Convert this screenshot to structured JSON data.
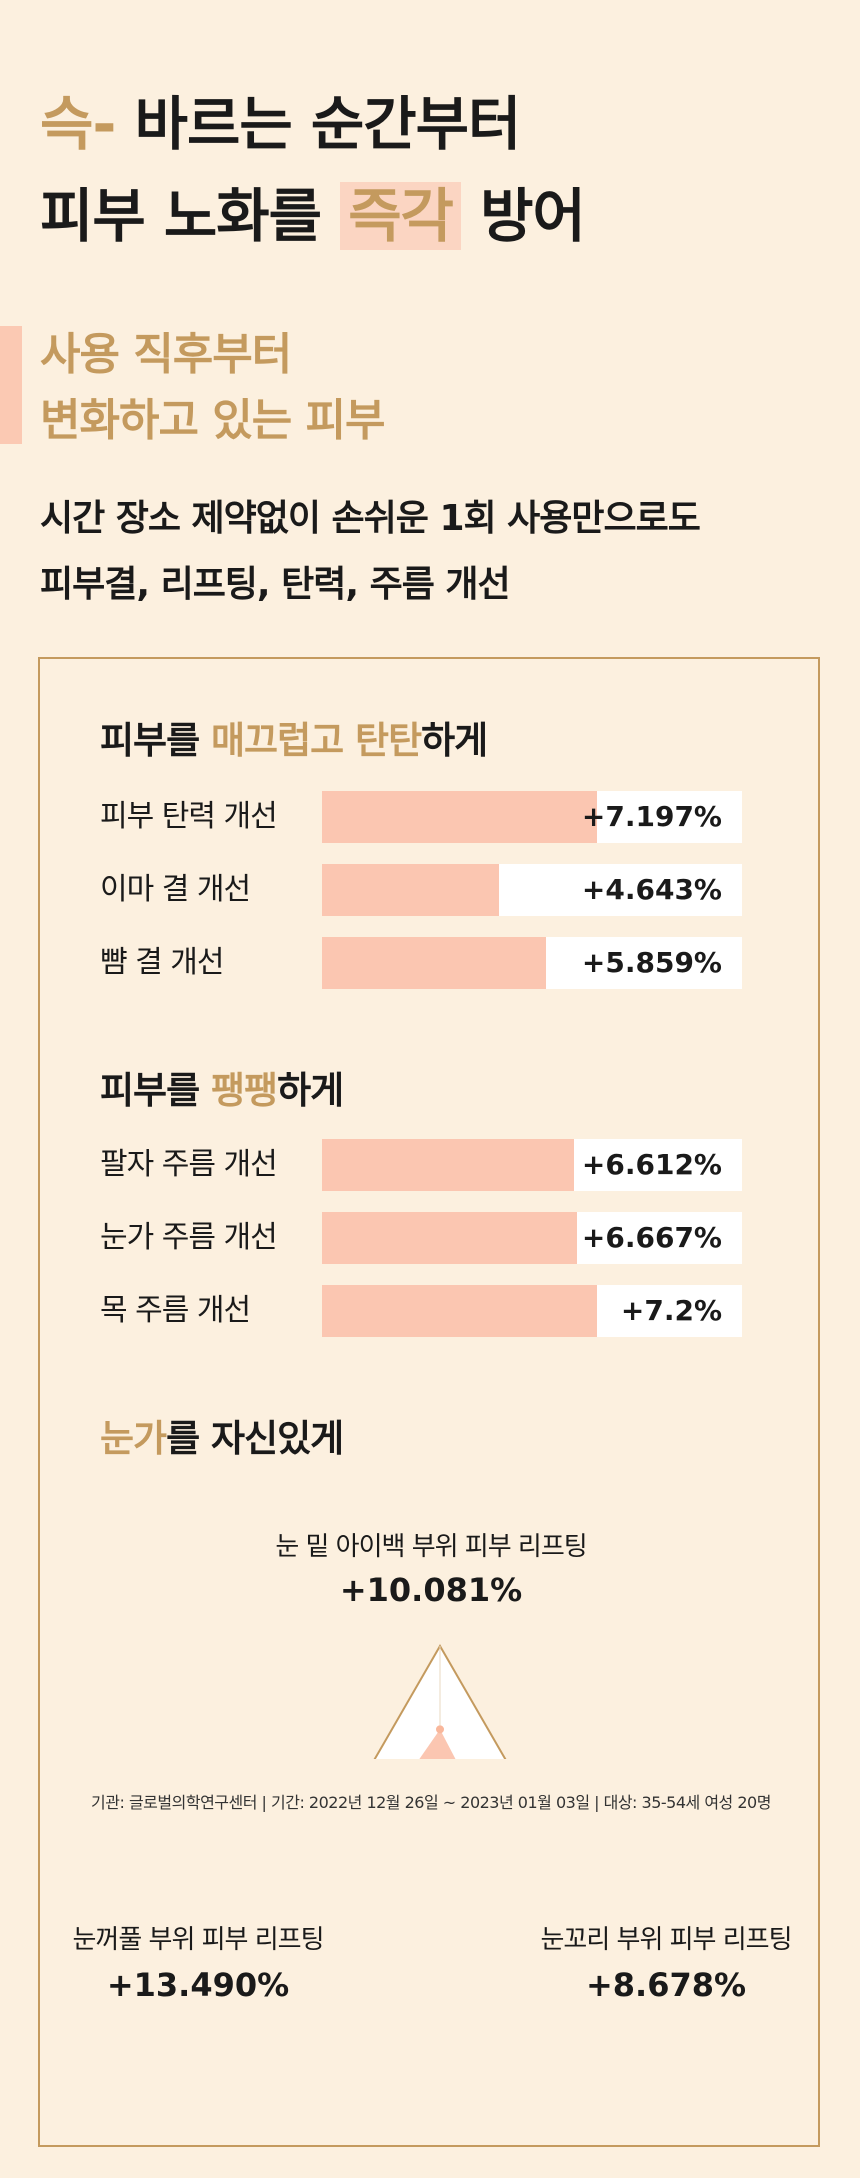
{
  "headline": {
    "line1_accent": "슥-",
    "line1_rest": " 바르는 순간부터",
    "line2_pre": "피부 노화를 ",
    "line2_mark": "즉각",
    "line2_post": " 방어"
  },
  "subhead": {
    "line1": "사용 직후부터",
    "line2": "변화하고 있는 피부"
  },
  "description": {
    "line1": "시간 장소 제약없이 손쉬운 1회 사용만으로도",
    "line2": "피부결, 리프팅, 탄력, 주름 개선"
  },
  "sections": [
    {
      "title_pre": "피부를 ",
      "title_accent": "매끄럽고 탄탄",
      "title_post": "하게"
    },
    {
      "title_pre": "피부를 ",
      "title_accent": "팽팽",
      "title_post": "하게"
    },
    {
      "title_pre": "",
      "title_accent": "눈가",
      "title_post": "를 자신있게"
    }
  ],
  "chart_data": [
    {
      "type": "bar",
      "orientation": "horizontal",
      "categories": [
        "피부 탄력 개선",
        "이마 결 개선",
        "뺨 결 개선"
      ],
      "values": [
        7.197,
        4.643,
        5.859
      ],
      "value_labels": [
        "+7.197%",
        "+4.643%",
        "+5.859%"
      ],
      "unit": "%",
      "xlim": [
        0,
        11
      ],
      "bar_color": "#fbc6b1"
    },
    {
      "type": "bar",
      "orientation": "horizontal",
      "categories": [
        "팔자 주름 개선",
        "눈가 주름 개선",
        "목 주름 개선"
      ],
      "values": [
        6.612,
        6.667,
        7.2
      ],
      "value_labels": [
        "+6.612%",
        "+6.667%",
        "+7.2%"
      ],
      "unit": "%",
      "xlim": [
        0,
        11
      ],
      "bar_color": "#fbc6b1"
    },
    {
      "type": "radar",
      "axes": [
        "눈 밑 아이백 부위 피부 리프팅",
        "눈꼬리 부위 피부 리프팅",
        "눈꺼풀 부위 피부 리프팅"
      ],
      "values": [
        10.081,
        8.678,
        13.49
      ],
      "value_labels": [
        "+10.081%",
        "+8.678%",
        "+13.490%"
      ],
      "unit": "%",
      "max": 20,
      "fill_color": "#fbc6b1"
    }
  ],
  "footnote": "기관: 글로벌의학연구센터 | 기간: 2022년 12월 26일 ~ 2023년 01월 03일 | 대상: 35-54세 여성 20명",
  "colors": {
    "background": "#fcf0df",
    "accent": "#c49a5e",
    "bar": "#fbc6b1",
    "track": "#ffffff"
  }
}
